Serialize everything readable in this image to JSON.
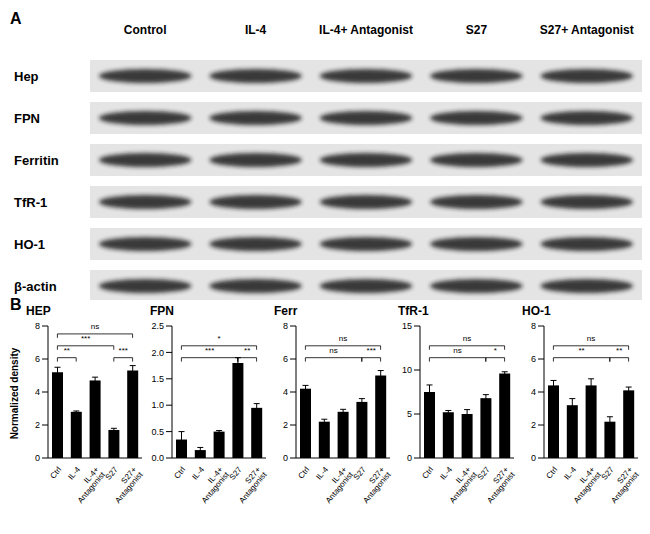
{
  "panel_labels": [
    "A",
    "B"
  ],
  "blot": {
    "lanes": [
      "Control",
      "IL-4",
      "IL-4+ Antagonist",
      "S27",
      "S27+ Antagonist"
    ],
    "rows": [
      "Hep",
      "FPN",
      "Ferritin",
      "TfR-1",
      "HO-1",
      "β-actin"
    ]
  },
  "chart_data": [
    {
      "type": "bar",
      "title": "HEP",
      "y_label": "Normalized density",
      "categories": [
        "Ctrl",
        "IL-4",
        "IL-4+ Antagonist",
        "S27",
        "S27+ Antagonist"
      ],
      "values": [
        5.2,
        2.8,
        4.7,
        1.7,
        5.3
      ],
      "errors": [
        0.3,
        0.05,
        0.2,
        0.1,
        0.3
      ],
      "color": "#000000",
      "ylim": [
        0,
        8
      ],
      "yticks": [
        0,
        2,
        4,
        6,
        8
      ],
      "annotations": [
        {
          "between": [
            "Ctrl",
            "IL-4"
          ],
          "label": "**"
        },
        {
          "between": [
            "Ctrl",
            "S27"
          ],
          "label": "***"
        },
        {
          "between": [
            "S27",
            "S27+ Antagonist"
          ],
          "label": "***"
        },
        {
          "between": [
            "Ctrl",
            "S27+ Antagonist"
          ],
          "label": "ns"
        }
      ]
    },
    {
      "type": "bar",
      "title": "FPN",
      "categories": [
        "Ctrl",
        "IL-4",
        "IL-4+ Antagonist",
        "S27",
        "S27+ Antagonist"
      ],
      "values": [
        0.35,
        0.15,
        0.5,
        1.8,
        0.95
      ],
      "errors": [
        0.15,
        0.05,
        0.02,
        0.1,
        0.08
      ],
      "color": "#000000",
      "ylim": [
        0,
        2.5
      ],
      "yticks": [
        {
          "value": 0,
          "label": "0.0"
        },
        0.5,
        {
          "value": 1,
          "label": "1.0"
        },
        1.5,
        {
          "value": 2,
          "label": "2.0"
        },
        2.5
      ],
      "annotations": [
        {
          "between": [
            "Ctrl",
            "S27"
          ],
          "label": "***"
        },
        {
          "between": [
            "S27",
            "S27+ Antagonist"
          ],
          "label": "**"
        },
        {
          "between": [
            "Ctrl",
            "S27+ Antagonist"
          ],
          "label": "*"
        }
      ]
    },
    {
      "type": "bar",
      "title": "Ferr",
      "categories": [
        "Ctrl",
        "IL-4",
        "IL-4+ Antagonist",
        "S27",
        "S27+ Antagonist"
      ],
      "values": [
        4.2,
        2.2,
        2.8,
        3.4,
        5.0
      ],
      "errors": [
        0.2,
        0.15,
        0.15,
        0.2,
        0.3
      ],
      "color": "#000000",
      "ylim": [
        0,
        8
      ],
      "yticks": [
        0,
        2,
        4,
        6,
        8
      ],
      "annotations": [
        {
          "between": [
            "Ctrl",
            "S27"
          ],
          "label": "ns"
        },
        {
          "between": [
            "S27",
            "S27+ Antagonist"
          ],
          "label": "***"
        },
        {
          "between": [
            "Ctrl",
            "S27+ Antagonist"
          ],
          "label": "ns"
        }
      ]
    },
    {
      "type": "bar",
      "title": "TfR-1",
      "categories": [
        "Ctrl",
        "IL-4",
        "IL-4+ Antagonist",
        "S27",
        "S27+ Antagonist"
      ],
      "values": [
        7.5,
        5.2,
        5.0,
        6.8,
        9.6
      ],
      "errors": [
        0.8,
        0.2,
        0.5,
        0.4,
        0.2
      ],
      "color": "#000000",
      "ylim": [
        0,
        15
      ],
      "yticks": [
        0,
        5,
        10,
        15
      ],
      "annotations": [
        {
          "between": [
            "Ctrl",
            "S27"
          ],
          "label": "ns"
        },
        {
          "between": [
            "S27",
            "S27+ Antagonist"
          ],
          "label": "*"
        },
        {
          "between": [
            "Ctrl",
            "S27+ Antagonist"
          ],
          "label": "ns"
        }
      ]
    },
    {
      "type": "bar",
      "title": "HO-1",
      "categories": [
        "Ctrl",
        "IL-4",
        "IL-4+ Antagonist",
        "S27",
        "S27+ Antagonist"
      ],
      "values": [
        4.4,
        3.2,
        4.4,
        2.2,
        4.1
      ],
      "errors": [
        0.3,
        0.4,
        0.4,
        0.3,
        0.2
      ],
      "color": "#000000",
      "ylim": [
        0,
        8
      ],
      "yticks": [
        0,
        2,
        4,
        6,
        8
      ],
      "annotations": [
        {
          "between": [
            "Ctrl",
            "S27"
          ],
          "label": "**"
        },
        {
          "between": [
            "S27",
            "S27+ Antagonist"
          ],
          "label": "**"
        },
        {
          "between": [
            "Ctrl",
            "S27+ Antagonist"
          ],
          "label": "ns"
        }
      ]
    }
  ]
}
